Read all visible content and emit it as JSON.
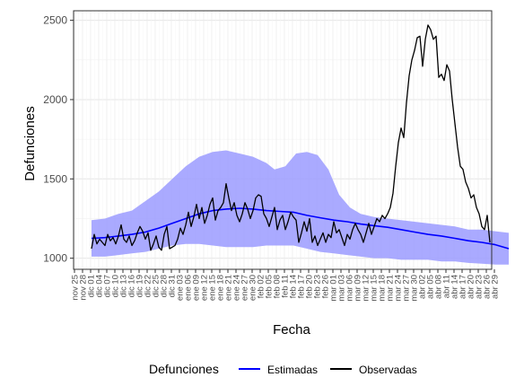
{
  "chart_data": {
    "type": "line",
    "xlabel": "Fecha",
    "ylabel": "Defunciones",
    "yticks": [
      1000,
      1500,
      2000,
      2500
    ],
    "ylim": [
      930,
      2560
    ],
    "xlim": [
      "2018-11-22",
      "2019-04-29"
    ],
    "xticks": [
      "nov 25",
      "nov 28",
      "dic 01",
      "dic 04",
      "dic 07",
      "dic 10",
      "dic 13",
      "dic 16",
      "dic 19",
      "dic 22",
      "dic 25",
      "dic 28",
      "dic 31",
      "ene 03",
      "ene 06",
      "ene 09",
      "ene 12",
      "ene 15",
      "ene 18",
      "ene 21",
      "ene 24",
      "ene 27",
      "ene 30",
      "feb 02",
      "feb 05",
      "feb 08",
      "feb 11",
      "feb 14",
      "feb 17",
      "feb 20",
      "feb 23",
      "feb 26",
      "mar 01",
      "mar 03",
      "mar 06",
      "mar 09",
      "mar 12",
      "mar 15",
      "mar 18",
      "mar 21",
      "mar 24",
      "mar 27",
      "mar 30",
      "abr 02",
      "abr 05",
      "abr 08",
      "abr 11",
      "abr 14",
      "abr 17",
      "abr 20",
      "abr 23",
      "abr 26",
      "abr 29"
    ],
    "grid": true,
    "legend": {
      "position": "bottom",
      "title": "Defunciones",
      "entries": [
        {
          "label": "Estimadas",
          "color": "#0000ff"
        },
        {
          "label": "Observadas",
          "color": "#000000"
        }
      ]
    },
    "band": {
      "color": "#9b9bff",
      "upper": [
        [
          0,
          1240
        ],
        [
          5,
          1250
        ],
        [
          10,
          1280
        ],
        [
          15,
          1300
        ],
        [
          20,
          1360
        ],
        [
          25,
          1420
        ],
        [
          30,
          1500
        ],
        [
          35,
          1580
        ],
        [
          40,
          1640
        ],
        [
          45,
          1670
        ],
        [
          50,
          1680
        ],
        [
          55,
          1660
        ],
        [
          60,
          1640
        ],
        [
          65,
          1600
        ],
        [
          68,
          1560
        ],
        [
          72,
          1580
        ],
        [
          76,
          1660
        ],
        [
          80,
          1670
        ],
        [
          84,
          1650
        ],
        [
          88,
          1560
        ],
        [
          92,
          1400
        ],
        [
          96,
          1320
        ],
        [
          100,
          1280
        ],
        [
          105,
          1260
        ],
        [
          110,
          1250
        ],
        [
          115,
          1240
        ],
        [
          120,
          1230
        ],
        [
          125,
          1220
        ],
        [
          130,
          1210
        ],
        [
          135,
          1200
        ],
        [
          140,
          1180
        ],
        [
          145,
          1180
        ],
        [
          150,
          1170
        ],
        [
          155,
          1160
        ]
      ],
      "lower": [
        [
          0,
          1010
        ],
        [
          5,
          1010
        ],
        [
          10,
          1020
        ],
        [
          15,
          1030
        ],
        [
          20,
          1040
        ],
        [
          25,
          1060
        ],
        [
          30,
          1080
        ],
        [
          35,
          1090
        ],
        [
          40,
          1090
        ],
        [
          45,
          1080
        ],
        [
          50,
          1070
        ],
        [
          55,
          1070
        ],
        [
          60,
          1070
        ],
        [
          65,
          1080
        ],
        [
          70,
          1080
        ],
        [
          75,
          1080
        ],
        [
          80,
          1060
        ],
        [
          85,
          1040
        ],
        [
          90,
          1030
        ],
        [
          95,
          1020
        ],
        [
          100,
          1010
        ],
        [
          105,
          1000
        ],
        [
          110,
          1000
        ],
        [
          115,
          990
        ],
        [
          120,
          990
        ],
        [
          125,
          990
        ],
        [
          130,
          980
        ],
        [
          135,
          980
        ],
        [
          140,
          970
        ],
        [
          145,
          965
        ],
        [
          150,
          960
        ],
        [
          155,
          960
        ]
      ]
    },
    "series": [
      {
        "name": "Estimadas",
        "color": "#0000ff",
        "points": [
          [
            0,
            1125
          ],
          [
            5,
            1130
          ],
          [
            10,
            1140
          ],
          [
            15,
            1150
          ],
          [
            20,
            1165
          ],
          [
            25,
            1190
          ],
          [
            30,
            1220
          ],
          [
            35,
            1250
          ],
          [
            40,
            1280
          ],
          [
            45,
            1300
          ],
          [
            50,
            1310
          ],
          [
            55,
            1315
          ],
          [
            60,
            1310
          ],
          [
            65,
            1300
          ],
          [
            70,
            1295
          ],
          [
            75,
            1290
          ],
          [
            80,
            1270
          ],
          [
            85,
            1255
          ],
          [
            90,
            1240
          ],
          [
            95,
            1230
          ],
          [
            100,
            1215
          ],
          [
            105,
            1205
          ],
          [
            110,
            1195
          ],
          [
            115,
            1180
          ],
          [
            120,
            1165
          ],
          [
            125,
            1150
          ],
          [
            130,
            1140
          ],
          [
            135,
            1125
          ],
          [
            140,
            1110
          ],
          [
            145,
            1100
          ],
          [
            150,
            1085
          ],
          [
            155,
            1060
          ]
        ]
      },
      {
        "name": "Observadas",
        "color": "#000000",
        "points": [
          [
            0,
            1060
          ],
          [
            1,
            1150
          ],
          [
            2,
            1090
          ],
          [
            3,
            1120
          ],
          [
            4,
            1100
          ],
          [
            5,
            1080
          ],
          [
            6,
            1150
          ],
          [
            7,
            1110
          ],
          [
            8,
            1130
          ],
          [
            9,
            1090
          ],
          [
            10,
            1140
          ],
          [
            11,
            1210
          ],
          [
            12,
            1120
          ],
          [
            13,
            1100
          ],
          [
            14,
            1140
          ],
          [
            15,
            1080
          ],
          [
            16,
            1110
          ],
          [
            17,
            1160
          ],
          [
            18,
            1200
          ],
          [
            19,
            1170
          ],
          [
            20,
            1120
          ],
          [
            21,
            1160
          ],
          [
            22,
            1050
          ],
          [
            23,
            1090
          ],
          [
            24,
            1140
          ],
          [
            25,
            1070
          ],
          [
            26,
            1050
          ],
          [
            27,
            1150
          ],
          [
            28,
            1200
          ],
          [
            29,
            1060
          ],
          [
            30,
            1070
          ],
          [
            31,
            1080
          ],
          [
            32,
            1120
          ],
          [
            33,
            1190
          ],
          [
            34,
            1150
          ],
          [
            35,
            1210
          ],
          [
            36,
            1290
          ],
          [
            37,
            1200
          ],
          [
            38,
            1260
          ],
          [
            39,
            1340
          ],
          [
            40,
            1250
          ],
          [
            41,
            1320
          ],
          [
            42,
            1220
          ],
          [
            43,
            1270
          ],
          [
            44,
            1340
          ],
          [
            45,
            1380
          ],
          [
            46,
            1240
          ],
          [
            47,
            1300
          ],
          [
            48,
            1320
          ],
          [
            49,
            1350
          ],
          [
            50,
            1470
          ],
          [
            51,
            1380
          ],
          [
            52,
            1300
          ],
          [
            53,
            1350
          ],
          [
            54,
            1270
          ],
          [
            55,
            1230
          ],
          [
            56,
            1280
          ],
          [
            57,
            1350
          ],
          [
            58,
            1310
          ],
          [
            59,
            1250
          ],
          [
            60,
            1300
          ],
          [
            61,
            1380
          ],
          [
            62,
            1400
          ],
          [
            63,
            1390
          ],
          [
            64,
            1280
          ],
          [
            65,
            1250
          ],
          [
            66,
            1200
          ],
          [
            67,
            1260
          ],
          [
            68,
            1320
          ],
          [
            69,
            1180
          ],
          [
            70,
            1240
          ],
          [
            71,
            1270
          ],
          [
            72,
            1180
          ],
          [
            73,
            1230
          ],
          [
            74,
            1290
          ],
          [
            75,
            1260
          ],
          [
            76,
            1240
          ],
          [
            77,
            1100
          ],
          [
            78,
            1160
          ],
          [
            79,
            1230
          ],
          [
            80,
            1170
          ],
          [
            81,
            1250
          ],
          [
            82,
            1100
          ],
          [
            83,
            1140
          ],
          [
            84,
            1080
          ],
          [
            85,
            1120
          ],
          [
            86,
            1160
          ],
          [
            87,
            1100
          ],
          [
            88,
            1150
          ],
          [
            89,
            1130
          ],
          [
            90,
            1230
          ],
          [
            91,
            1160
          ],
          [
            92,
            1180
          ],
          [
            93,
            1130
          ],
          [
            94,
            1080
          ],
          [
            95,
            1150
          ],
          [
            96,
            1120
          ],
          [
            97,
            1180
          ],
          [
            98,
            1220
          ],
          [
            99,
            1180
          ],
          [
            100,
            1150
          ],
          [
            101,
            1100
          ],
          [
            102,
            1160
          ],
          [
            103,
            1220
          ],
          [
            104,
            1150
          ],
          [
            105,
            1200
          ],
          [
            106,
            1250
          ],
          [
            107,
            1230
          ],
          [
            108,
            1270
          ],
          [
            109,
            1250
          ],
          [
            110,
            1280
          ],
          [
            111,
            1320
          ],
          [
            112,
            1410
          ],
          [
            113,
            1580
          ],
          [
            114,
            1730
          ],
          [
            115,
            1820
          ],
          [
            116,
            1760
          ],
          [
            117,
            1980
          ],
          [
            118,
            2150
          ],
          [
            119,
            2250
          ],
          [
            120,
            2310
          ],
          [
            121,
            2390
          ],
          [
            122,
            2400
          ],
          [
            123,
            2210
          ],
          [
            124,
            2380
          ],
          [
            125,
            2470
          ],
          [
            126,
            2440
          ],
          [
            127,
            2380
          ],
          [
            128,
            2400
          ],
          [
            129,
            2140
          ],
          [
            130,
            2160
          ],
          [
            131,
            2120
          ],
          [
            132,
            2220
          ],
          [
            133,
            2180
          ],
          [
            134,
            2000
          ],
          [
            135,
            1850
          ],
          [
            136,
            1700
          ],
          [
            137,
            1580
          ],
          [
            138,
            1560
          ],
          [
            139,
            1480
          ],
          [
            140,
            1440
          ],
          [
            141,
            1380
          ],
          [
            142,
            1400
          ],
          [
            143,
            1320
          ],
          [
            144,
            1280
          ],
          [
            145,
            1200
          ],
          [
            146,
            1180
          ],
          [
            147,
            1270
          ],
          [
            148,
            1100
          ]
        ]
      }
    ]
  }
}
